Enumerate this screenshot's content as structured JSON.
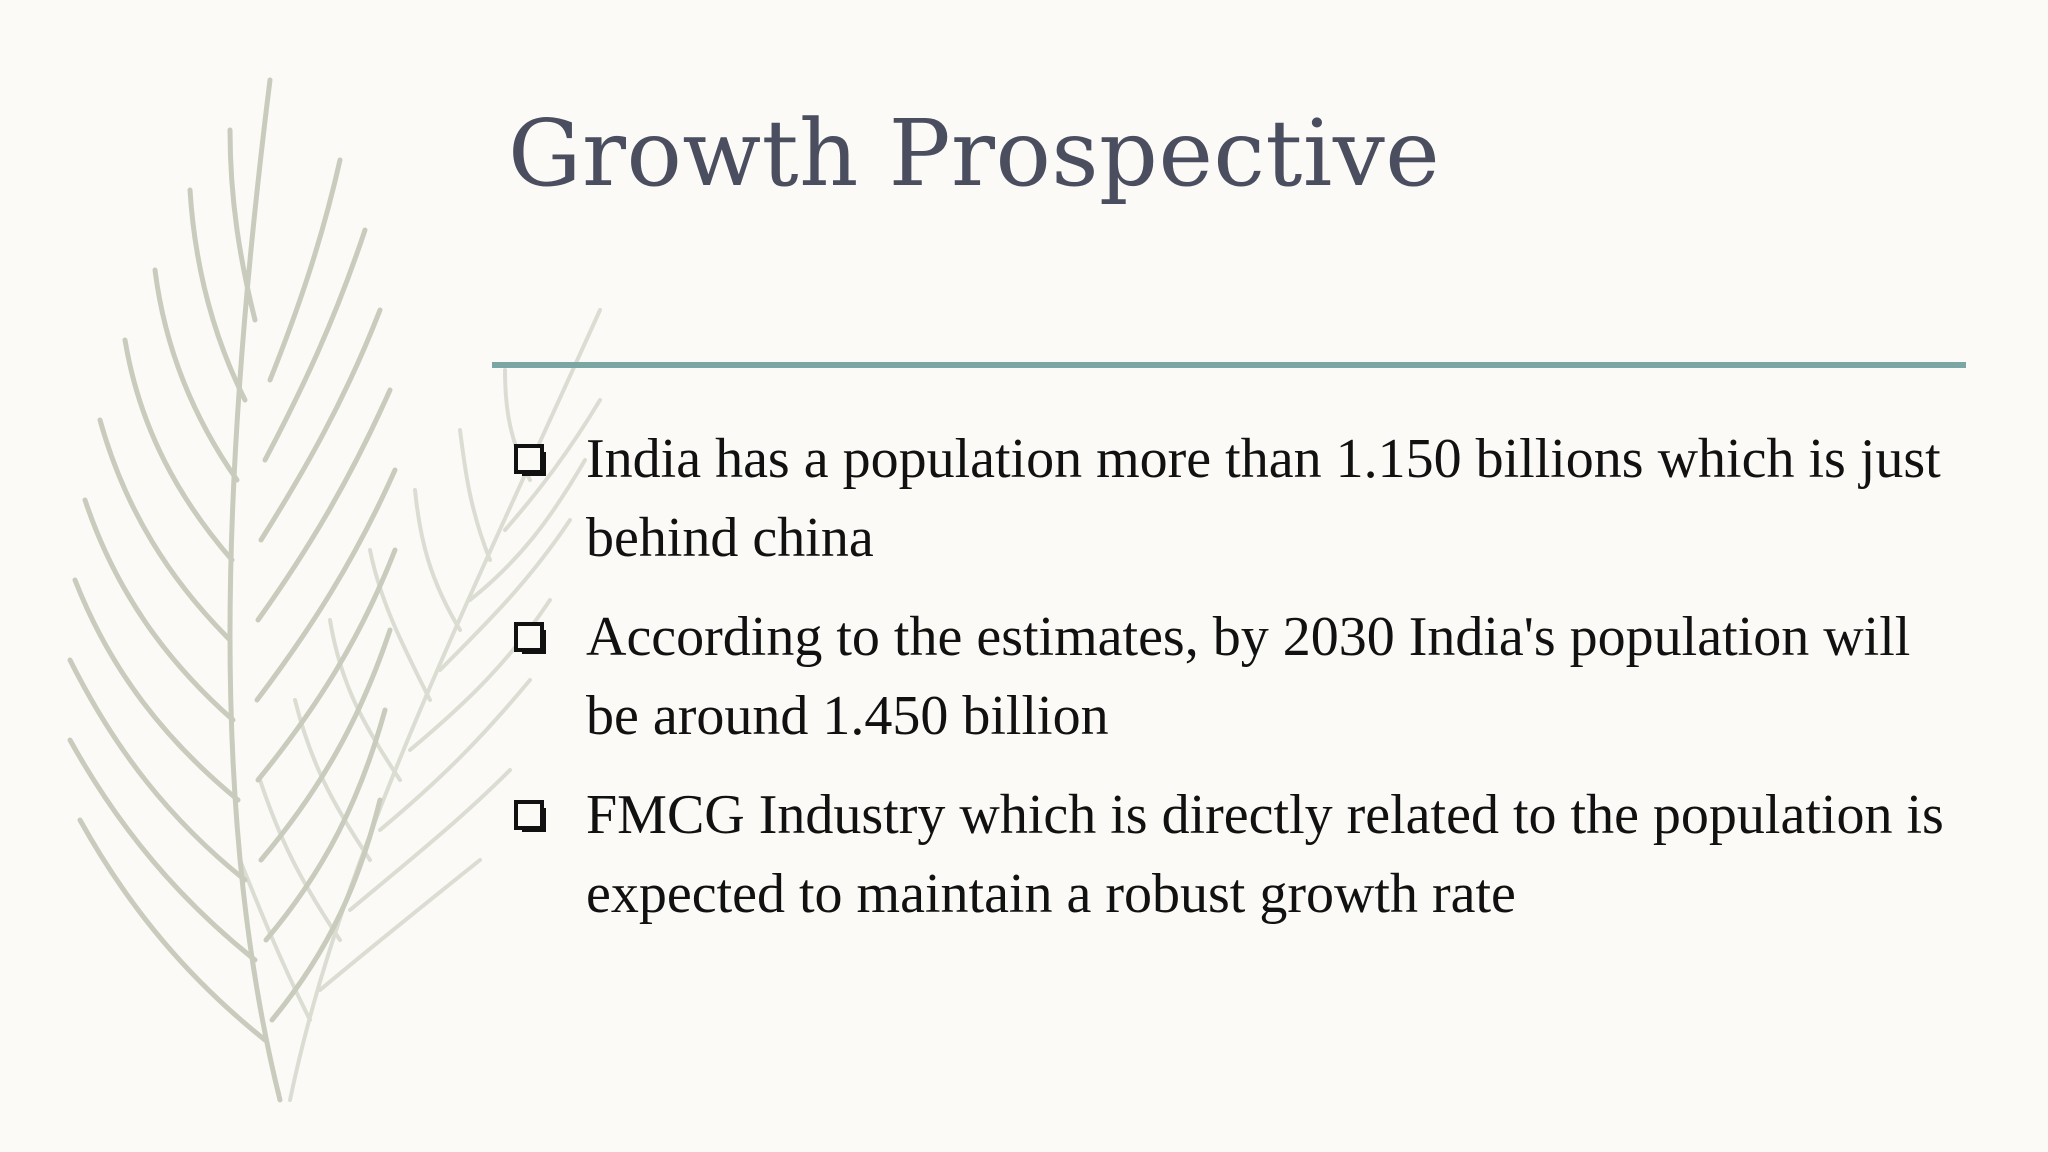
{
  "slide": {
    "title": "Growth Prospective",
    "bullets": [
      {
        "text": "India has a population more than 1.150 billions which is just behind china"
      },
      {
        "text": "According to the estimates, by 2030 India's population will be around 1.450 billion"
      },
      {
        "text": "FMCG Industry which is directly related to the population is expected to maintain a robust growth rate"
      }
    ],
    "bullet_icon": "hollow-square-bullet-icon",
    "decoration": "feather-illustration",
    "colors": {
      "background": "#fbfaf7",
      "title": "#4a4e5e",
      "divider": "#7aa6a3",
      "body_text": "#111111",
      "feather": "#c9cbbd"
    }
  }
}
